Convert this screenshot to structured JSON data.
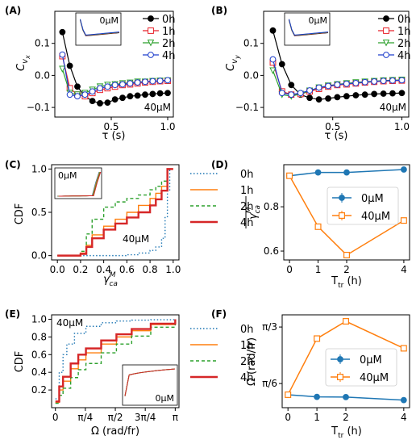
{
  "panel_labels": [
    "(A)",
    "(B)",
    "(C)",
    "(D)",
    "(E)",
    "(F)"
  ],
  "colors": {
    "0h": "#000000",
    "1h": "#e8222a",
    "2h": "#2ca02c",
    "4h": "#1f3fcc",
    "cdf_0h": "#1f77b4",
    "cdf_1h": "#ff7f0e",
    "cdf_2h": "#2ca02c",
    "cdf_4h": "#d62728",
    "c0": "#1f77b4",
    "c40": "#ff7f0e"
  },
  "chart_data": [
    {
      "panel": "A",
      "type": "line",
      "ylabel": "C_vx",
      "xlabel": "τ (s)",
      "xlim": [
        0.0,
        1.05
      ],
      "ylim": [
        -0.13,
        0.2
      ],
      "xticks": [
        0.5,
        1.0
      ],
      "xtick_labels": [
        "0.5",
        "1.0"
      ],
      "yticks": [
        -0.1,
        0.0,
        0.1
      ],
      "ytick_labels": [
        "−0.1",
        "0.0",
        "0.1"
      ],
      "annotation": "40μM",
      "inset_label": "0μM",
      "legend": [
        "0h",
        "1h",
        "2h",
        "4h"
      ],
      "series": [
        {
          "name": "0h",
          "marker": "circle",
          "x": [
            0.067,
            0.133,
            0.2,
            0.267,
            0.333,
            0.4,
            0.467,
            0.533,
            0.6,
            0.667,
            0.733,
            0.8,
            0.867,
            0.933,
            1.0
          ],
          "y": [
            0.135,
            0.03,
            -0.035,
            -0.065,
            -0.08,
            -0.087,
            -0.085,
            -0.075,
            -0.07,
            -0.065,
            -0.063,
            -0.06,
            -0.058,
            -0.056,
            -0.055
          ]
        },
        {
          "name": "1h",
          "marker": "square",
          "x": [
            0.067,
            0.133,
            0.2,
            0.267,
            0.333,
            0.4,
            0.467,
            0.533,
            0.6,
            0.667,
            0.733,
            0.8,
            0.867,
            0.933,
            1.0
          ],
          "y": [
            0.06,
            -0.04,
            -0.06,
            -0.065,
            -0.055,
            -0.045,
            -0.04,
            -0.035,
            -0.03,
            -0.028,
            -0.025,
            -0.022,
            -0.02,
            -0.018,
            -0.017
          ]
        },
        {
          "name": "2h",
          "marker": "triangle",
          "x": [
            0.067,
            0.133,
            0.2,
            0.267,
            0.333,
            0.4,
            0.467,
            0.533,
            0.6,
            0.667,
            0.733,
            0.8,
            0.867,
            0.933,
            1.0
          ],
          "y": [
            0.02,
            -0.055,
            -0.06,
            -0.055,
            -0.045,
            -0.035,
            -0.03,
            -0.028,
            -0.025,
            -0.023,
            -0.02,
            -0.02,
            -0.018,
            -0.017,
            -0.016
          ]
        },
        {
          "name": "4h",
          "marker": "circle-open",
          "x": [
            0.067,
            0.133,
            0.2,
            0.267,
            0.333,
            0.4,
            0.467,
            0.533,
            0.6,
            0.667,
            0.733,
            0.8,
            0.867,
            0.933,
            1.0
          ],
          "y": [
            0.065,
            -0.06,
            -0.065,
            -0.06,
            -0.05,
            -0.04,
            -0.035,
            -0.03,
            -0.028,
            -0.025,
            -0.022,
            -0.02,
            -0.018,
            -0.017,
            -0.015
          ]
        }
      ]
    },
    {
      "panel": "B",
      "type": "line",
      "ylabel": "C_vy",
      "xlabel": "τ (s)",
      "xlim": [
        0.0,
        1.05
      ],
      "ylim": [
        -0.13,
        0.2
      ],
      "xticks": [
        0.5,
        1.0
      ],
      "xtick_labels": [
        "0.5",
        "1.0"
      ],
      "yticks": [
        -0.1,
        0.0,
        0.1
      ],
      "ytick_labels": [
        "−0.1",
        "0.0",
        "0.1"
      ],
      "annotation": "40μM",
      "inset_label": "0μM",
      "legend": [
        "0h",
        "1h",
        "2h",
        "4h"
      ],
      "series": [
        {
          "name": "0h",
          "marker": "circle",
          "x": [
            0.067,
            0.133,
            0.2,
            0.267,
            0.333,
            0.4,
            0.467,
            0.533,
            0.6,
            0.667,
            0.733,
            0.8,
            0.867,
            0.933,
            1.0
          ],
          "y": [
            0.14,
            0.035,
            -0.03,
            -0.06,
            -0.07,
            -0.075,
            -0.072,
            -0.068,
            -0.065,
            -0.062,
            -0.06,
            -0.058,
            -0.057,
            -0.056,
            -0.055
          ]
        },
        {
          "name": "1h",
          "marker": "square",
          "x": [
            0.067,
            0.133,
            0.2,
            0.267,
            0.333,
            0.4,
            0.467,
            0.533,
            0.6,
            0.667,
            0.733,
            0.8,
            0.867,
            0.933,
            1.0
          ],
          "y": [
            0.04,
            -0.05,
            -0.06,
            -0.058,
            -0.05,
            -0.042,
            -0.035,
            -0.03,
            -0.028,
            -0.025,
            -0.022,
            -0.02,
            -0.018,
            -0.017,
            -0.016
          ]
        },
        {
          "name": "2h",
          "marker": "triangle",
          "x": [
            0.067,
            0.133,
            0.2,
            0.267,
            0.333,
            0.4,
            0.467,
            0.533,
            0.6,
            0.667,
            0.733,
            0.8,
            0.867,
            0.933,
            1.0
          ],
          "y": [
            0.015,
            -0.06,
            -0.065,
            -0.058,
            -0.048,
            -0.038,
            -0.032,
            -0.028,
            -0.025,
            -0.022,
            -0.02,
            -0.018,
            -0.016,
            -0.015,
            -0.014
          ]
        },
        {
          "name": "4h",
          "marker": "circle-open",
          "x": [
            0.067,
            0.133,
            0.2,
            0.267,
            0.333,
            0.4,
            0.467,
            0.533,
            0.6,
            0.667,
            0.733,
            0.8,
            0.867,
            0.933,
            1.0
          ],
          "y": [
            0.05,
            -0.055,
            -0.06,
            -0.055,
            -0.047,
            -0.038,
            -0.033,
            -0.029,
            -0.026,
            -0.024,
            -0.021,
            -0.019,
            -0.017,
            -0.016,
            -0.015
          ]
        }
      ]
    },
    {
      "panel": "C",
      "type": "line",
      "ylabel": "CDF",
      "xlabel": "γ^M_ca",
      "xlim": [
        -0.05,
        1.05
      ],
      "ylim": [
        -0.05,
        1.05
      ],
      "xticks": [
        0.0,
        0.2,
        0.4,
        0.6,
        0.8,
        1.0
      ],
      "xtick_labels": [
        "0.0",
        "0.2",
        "0.4",
        "0.6",
        "0.8",
        "1.0"
      ],
      "yticks": [
        0.0,
        0.5,
        1.0
      ],
      "ytick_labels": [
        "0.0",
        "0.5",
        "1.0"
      ],
      "annotation": "40μM",
      "inset_label": "0μM",
      "legend": [
        "0h",
        "1h",
        "2h",
        "4h"
      ],
      "series": [
        {
          "name": "0h",
          "style": "dotted",
          "x": [
            0.0,
            0.2,
            0.4,
            0.6,
            0.7,
            0.8,
            0.85,
            0.9,
            0.93,
            0.95,
            0.97,
            1.0
          ],
          "y": [
            0.0,
            0.0,
            0.0,
            0.01,
            0.03,
            0.06,
            0.1,
            0.2,
            0.45,
            0.75,
            1.0,
            1.0
          ]
        },
        {
          "name": "1h",
          "style": "solid",
          "x": [
            0.0,
            0.15,
            0.2,
            0.25,
            0.3,
            0.4,
            0.5,
            0.6,
            0.7,
            0.8,
            0.85,
            0.9,
            0.95,
            1.0
          ],
          "y": [
            0.0,
            0.0,
            0.03,
            0.12,
            0.24,
            0.34,
            0.42,
            0.5,
            0.58,
            0.66,
            0.72,
            0.8,
            1.0,
            1.0
          ]
        },
        {
          "name": "2h",
          "style": "dashed",
          "x": [
            0.0,
            0.15,
            0.2,
            0.25,
            0.3,
            0.4,
            0.5,
            0.6,
            0.7,
            0.8,
            0.85,
            0.9,
            0.95,
            1.0
          ],
          "y": [
            0.0,
            0.0,
            0.05,
            0.25,
            0.42,
            0.56,
            0.62,
            0.66,
            0.7,
            0.76,
            0.8,
            0.86,
            1.0,
            1.0
          ]
        },
        {
          "name": "4h",
          "style": "solid-thick",
          "x": [
            0.0,
            0.15,
            0.2,
            0.25,
            0.3,
            0.4,
            0.5,
            0.6,
            0.7,
            0.8,
            0.85,
            0.9,
            0.95,
            1.0
          ],
          "y": [
            0.0,
            0.0,
            0.02,
            0.1,
            0.2,
            0.3,
            0.37,
            0.44,
            0.5,
            0.58,
            0.65,
            0.75,
            1.0,
            1.0
          ]
        }
      ]
    },
    {
      "panel": "D",
      "type": "line",
      "ylabel": "γ^M_ca (mean)",
      "xlabel": "T_tr (h)",
      "xlim": [
        -0.2,
        4.2
      ],
      "ylim": [
        0.56,
        0.99
      ],
      "xticks": [
        0,
        1,
        2,
        4
      ],
      "xtick_labels": [
        "0",
        "1",
        "2",
        "4"
      ],
      "yticks": [
        0.6,
        0.8
      ],
      "ytick_labels": [
        "0.6",
        "0.8"
      ],
      "legend": [
        "0μM",
        "40μM"
      ],
      "series": [
        {
          "name": "0μM",
          "marker": "circle",
          "x": [
            0,
            1,
            2,
            4
          ],
          "y": [
            0.94,
            0.955,
            0.955,
            0.968
          ]
        },
        {
          "name": "40μM",
          "marker": "square-open",
          "x": [
            0,
            1,
            2,
            4
          ],
          "y": [
            0.94,
            0.71,
            0.582,
            0.738
          ]
        }
      ]
    },
    {
      "panel": "E",
      "type": "line",
      "ylabel": "CDF",
      "xlabel": "Ω (rad/fr)",
      "xlim": [
        -0.1,
        3.24
      ],
      "ylim": [
        0.0,
        1.05
      ],
      "xticks": [
        0,
        0.785,
        1.571,
        2.356,
        3.1416
      ],
      "xtick_labels": [
        "0",
        "π/4",
        "π/2",
        "3π/4",
        "π"
      ],
      "yticks": [
        0.2,
        0.4,
        0.6,
        0.8,
        1.0
      ],
      "ytick_labels": [
        "0.2",
        "0.4",
        "0.6",
        "0.8",
        "1.0"
      ],
      "annotation": "40μM",
      "inset_label": "0μM",
      "legend": [
        "0h",
        "1h",
        "2h",
        "4h"
      ],
      "series": [
        {
          "name": "0h",
          "style": "dotted",
          "x": [
            0.0,
            0.1,
            0.2,
            0.3,
            0.5,
            0.8,
            1.2,
            1.6,
            2.0,
            2.5,
            3.1416
          ],
          "y": [
            0.1,
            0.4,
            0.6,
            0.72,
            0.84,
            0.92,
            0.96,
            0.98,
            0.99,
            0.995,
            1.0
          ]
        },
        {
          "name": "1h",
          "style": "solid",
          "x": [
            0.0,
            0.1,
            0.2,
            0.4,
            0.6,
            0.8,
            1.2,
            1.6,
            2.0,
            2.5,
            3.1416
          ],
          "y": [
            0.06,
            0.2,
            0.3,
            0.44,
            0.54,
            0.62,
            0.72,
            0.8,
            0.87,
            0.94,
            1.0
          ]
        },
        {
          "name": "2h",
          "style": "dashed",
          "x": [
            0.0,
            0.1,
            0.2,
            0.4,
            0.6,
            0.8,
            1.2,
            1.6,
            2.0,
            2.5,
            3.1416
          ],
          "y": [
            0.05,
            0.14,
            0.22,
            0.34,
            0.43,
            0.5,
            0.62,
            0.72,
            0.81,
            0.91,
            1.0
          ]
        },
        {
          "name": "4h",
          "style": "solid-thick",
          "x": [
            0.0,
            0.1,
            0.2,
            0.4,
            0.6,
            0.8,
            1.2,
            1.6,
            2.0,
            2.5,
            3.1416
          ],
          "y": [
            0.07,
            0.24,
            0.35,
            0.5,
            0.6,
            0.67,
            0.76,
            0.83,
            0.89,
            0.95,
            1.0
          ]
        }
      ]
    },
    {
      "panel": "F",
      "type": "line",
      "ylabel": "Ω̄ (rad/fr)",
      "xlabel": "T_tr (h)",
      "xlim": [
        -0.2,
        4.2
      ],
      "ylim": [
        0.3,
        1.16
      ],
      "xticks": [
        0,
        1,
        2,
        4
      ],
      "xtick_labels": [
        "0",
        "1",
        "2",
        "4"
      ],
      "yticks": [
        0.5236,
        1.0472
      ],
      "ytick_labels": [
        "π/6",
        "π/3"
      ],
      "legend": [
        "0μM",
        "40μM"
      ],
      "series": [
        {
          "name": "0μM",
          "marker": "circle",
          "x": [
            0,
            1,
            2,
            4
          ],
          "y": [
            0.42,
            0.4,
            0.398,
            0.37
          ]
        },
        {
          "name": "40μM",
          "marker": "square-open",
          "x": [
            0,
            1,
            2,
            4
          ],
          "y": [
            0.42,
            0.94,
            1.1,
            0.85
          ]
        }
      ]
    }
  ]
}
